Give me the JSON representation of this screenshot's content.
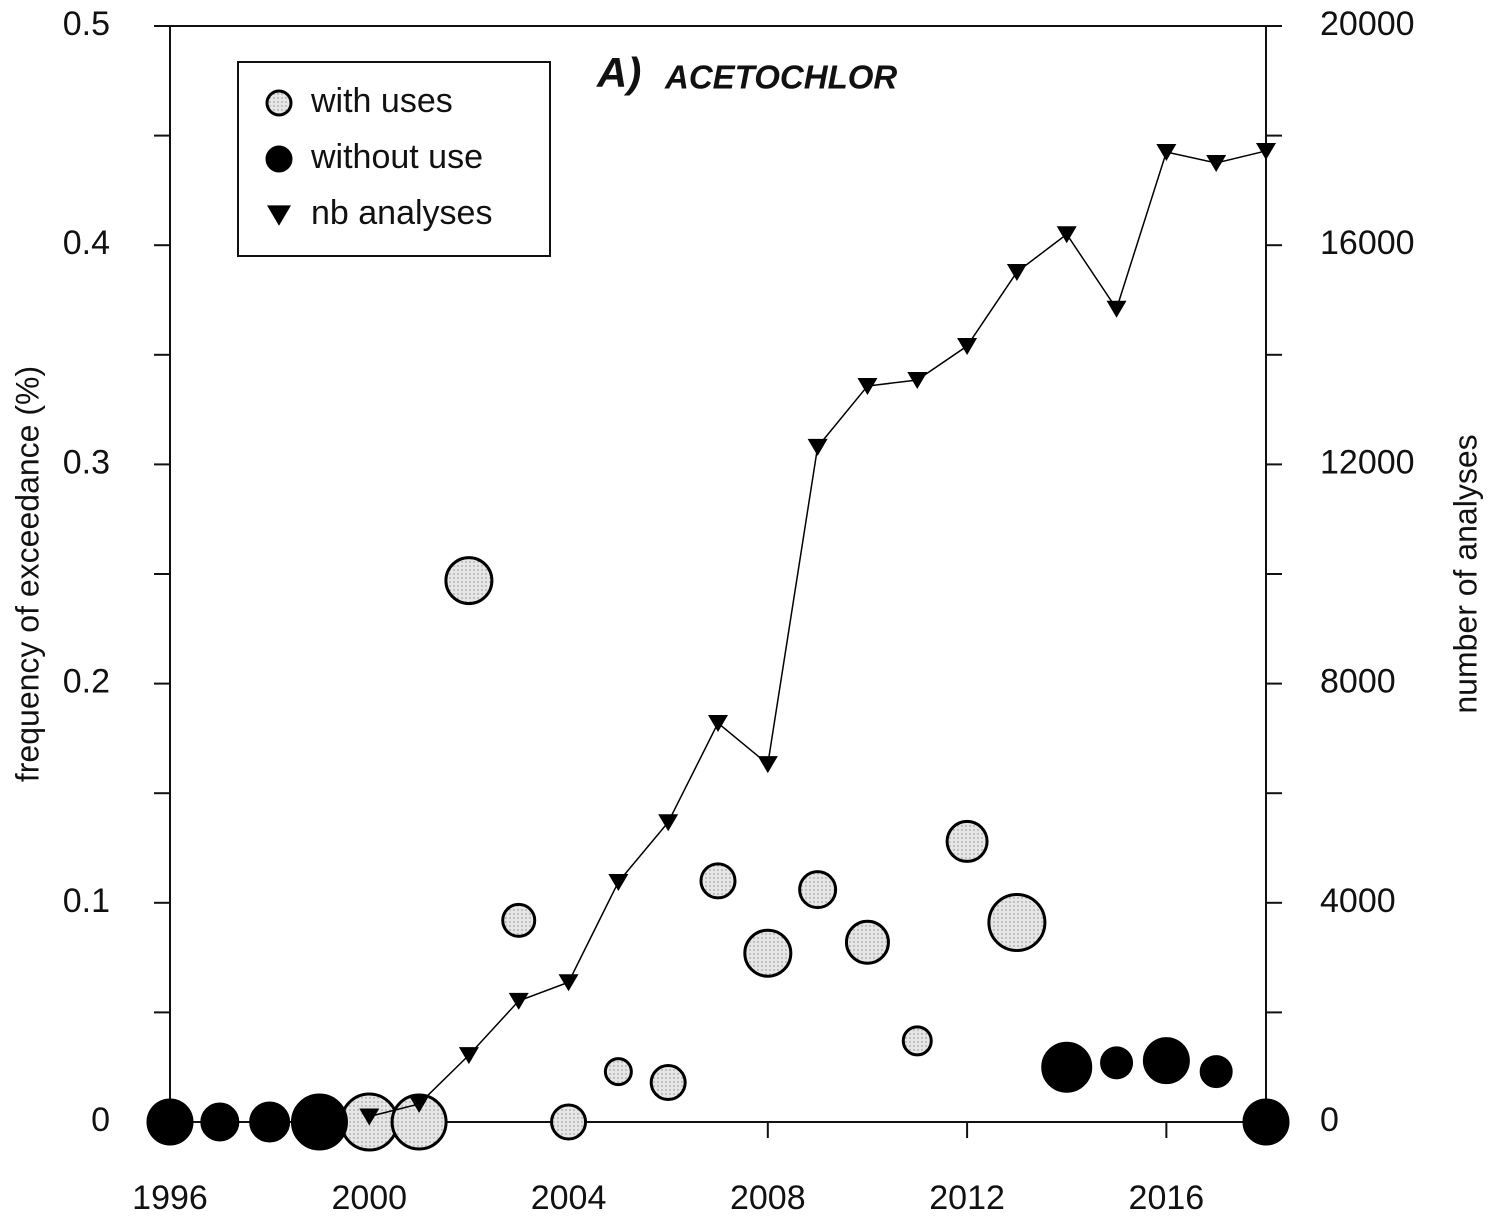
{
  "chart_data": {
    "type": "bubble",
    "title": "A)",
    "subtitle": "ACETOCHLOR",
    "y_label": "frequency of exceedance (%)",
    "y2_label": "number of analyses",
    "xlim": [
      1996,
      2018
    ],
    "xticks": [
      1996,
      2000,
      2004,
      2008,
      2012,
      2016
    ],
    "ylim": [
      0,
      0.5
    ],
    "yticks": [
      0,
      0.1,
      0.2,
      0.3,
      0.4,
      0.5
    ],
    "yminorticks": [
      0.05,
      0.15,
      0.25,
      0.35,
      0.45
    ],
    "y2lim": [
      0,
      20000
    ],
    "y2ticks": [
      0,
      4000,
      8000,
      12000,
      16000,
      20000
    ],
    "y2minorticks": [
      2000,
      6000,
      10000,
      14000,
      18000
    ],
    "legend": "top-left",
    "series": [
      {
        "name": "with uses",
        "color": "#e2e2e2",
        "x": [
          2000,
          2001,
          2002,
          2003,
          2004,
          2005,
          2006,
          2007,
          2008,
          2009,
          2010,
          2011,
          2012,
          2013
        ],
        "values": [
          0,
          0,
          0.247,
          0.092,
          0,
          0.023,
          0.018,
          0.11,
          0.077,
          0.106,
          0.082,
          0.037,
          0.128,
          0.091
        ],
        "sizes": [
          28,
          27,
          23,
          16,
          17,
          13,
          17,
          17,
          23,
          18,
          21,
          14,
          20,
          28
        ]
      },
      {
        "name": "without use",
        "color": "#000000",
        "x": [
          1996,
          1997,
          1998,
          1999,
          2014,
          2015,
          2016,
          2017,
          2018
        ],
        "values": [
          0,
          0,
          0,
          0,
          0.025,
          0.027,
          0.028,
          0.023,
          0
        ],
        "sizes": [
          22,
          18,
          19,
          27,
          24,
          15,
          22,
          15,
          22
        ]
      },
      {
        "name": "nb analyses",
        "color": "#000000",
        "type": "line",
        "axis": "y2",
        "x": [
          2000,
          2001,
          2002,
          2003,
          2004,
          2005,
          2006,
          2007,
          2008,
          2009,
          2010,
          2011,
          2012,
          2013,
          2014,
          2015,
          2016,
          2017,
          2018
        ],
        "values": [
          100,
          330,
          1220,
          2210,
          2550,
          4380,
          5470,
          7280,
          6530,
          12320,
          13430,
          13540,
          14160,
          15510,
          16200,
          14840,
          17700,
          17500,
          17720
        ]
      }
    ]
  }
}
